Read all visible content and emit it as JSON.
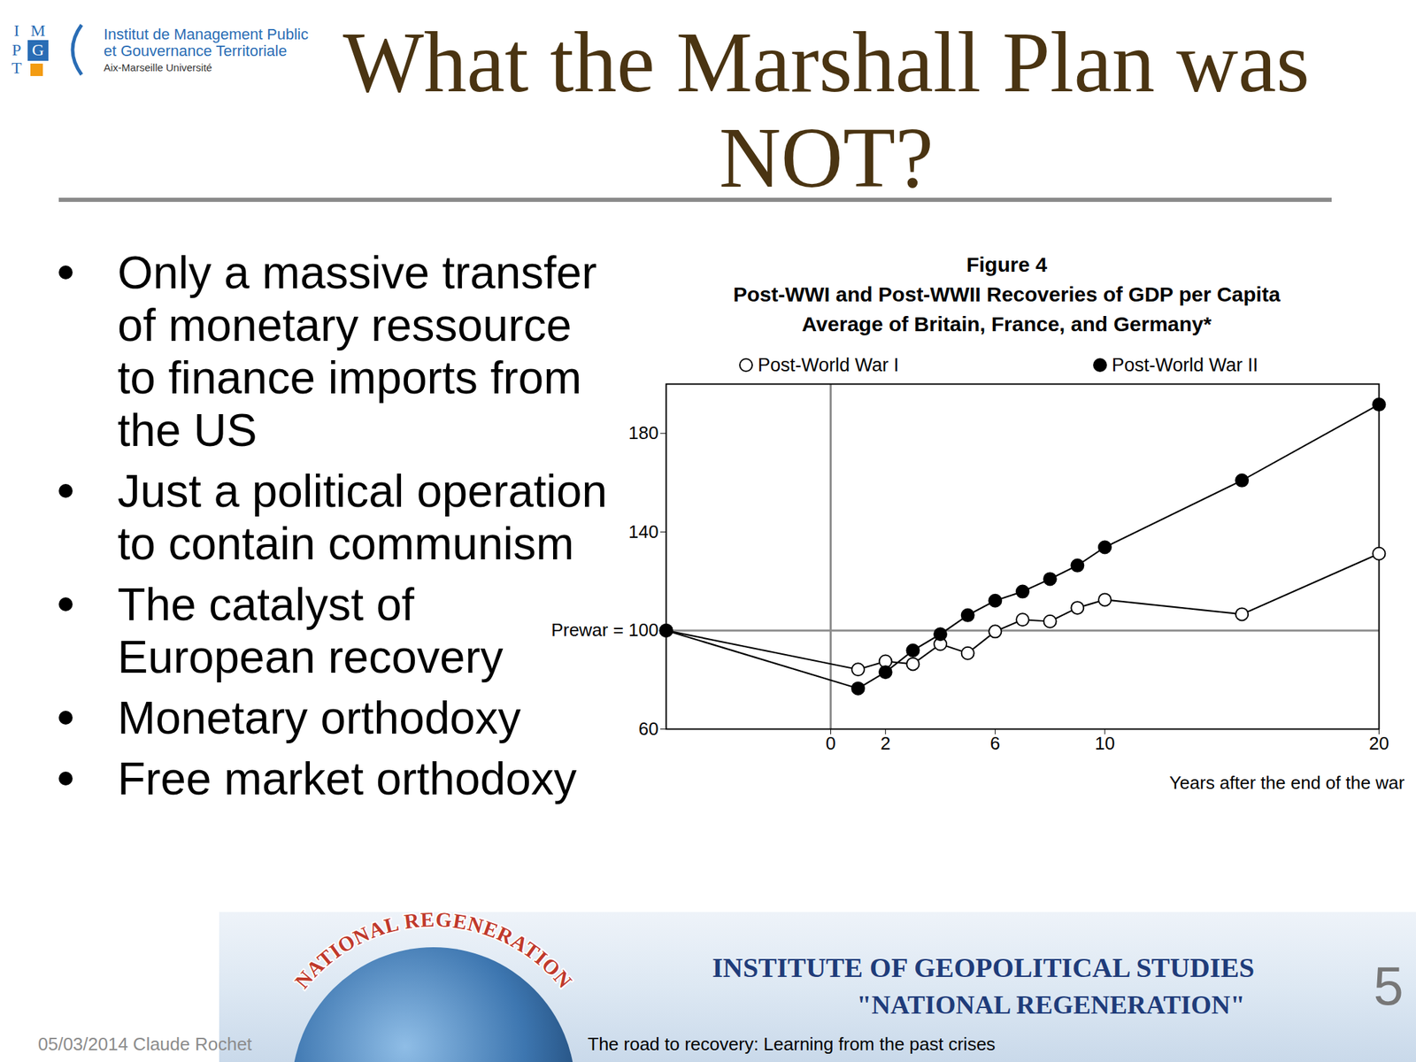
{
  "slide": {
    "title": [
      "What the Marshall Plan was",
      "NOT?"
    ],
    "bullets": [
      [
        "Only a massive transfer",
        "of monetary ressource",
        "to finance imports from",
        "the US"
      ],
      [
        "Just a political operation",
        "to contain communism"
      ],
      [
        "The catalyst of",
        "European recovery"
      ],
      [
        "Monetary orthodoxy"
      ],
      [
        "Free market orthodoxy"
      ]
    ],
    "logo": {
      "letters": [
        "I",
        "M",
        "P",
        "G",
        "T"
      ],
      "lines": [
        "Institut de Management Public",
        "et Gouvernance Territoriale",
        "Aix-Marseille Université"
      ]
    },
    "banner": {
      "arc_text": "NATIONAL REGENERATION",
      "title": "INSTITUTE OF GEOPOLITICAL STUDIES",
      "subtitle": "\"NATIONAL REGENERATION\""
    },
    "footer": {
      "date_author": "05/03/2014 Claude Rochet",
      "center": "The road to recovery: Learning from the past crises",
      "page": "5"
    }
  },
  "chart_data": {
    "type": "line",
    "title": "Figure 4",
    "subtitle": [
      "Post-WWI and Post-WWII Recoveries of GDP per Capita",
      "Average of Britain, France, and Germany*"
    ],
    "x_label": "Years after the end of the war",
    "x": [
      -6,
      1,
      2,
      3,
      4,
      5,
      6,
      7,
      8,
      9,
      10,
      15,
      20
    ],
    "series": [
      {
        "name": "Post-World War I",
        "color": "#000000",
        "marker": "circle_open",
        "values": [
          100,
          84.2,
          87.5,
          86.4,
          94.5,
          90.8,
          99.6,
          104.4,
          103.7,
          109.2,
          112.5,
          106.6,
          131.2
        ]
      },
      {
        "name": "Post-World War II",
        "color": "#000000",
        "marker": "circle",
        "values": [
          100,
          76.5,
          83.1,
          91.9,
          98.5,
          106.2,
          112.1,
          115.8,
          120.9,
          126.4,
          133.8,
          160.9,
          191.7
        ]
      }
    ],
    "xlim": [
      -6,
      20
    ],
    "xticks": [
      0,
      2,
      6,
      10,
      20
    ],
    "ylim": [
      60,
      200
    ],
    "yticks": [
      60,
      {
        "value": 100,
        "label": "Prewar = 100"
      },
      140,
      180
    ],
    "legend": "top"
  }
}
